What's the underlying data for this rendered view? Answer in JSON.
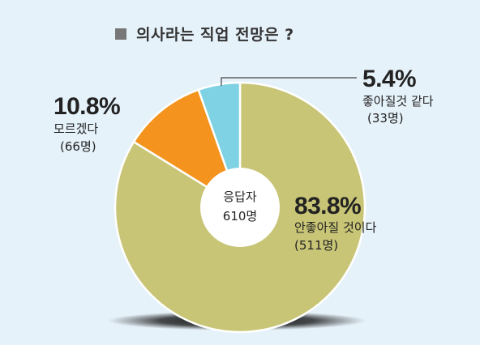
{
  "chart_data": {
    "type": "pie",
    "title": "의사라는 직업 전망은 ?",
    "center_label": "응답자",
    "center_value": "610명",
    "slices": [
      {
        "label": "안좋아질 것이다",
        "percent": "83.8%",
        "value": 83.8,
        "count": "(511명)",
        "color": "#c8c576"
      },
      {
        "label": "모르겠다",
        "percent": "10.8%",
        "value": 10.8,
        "count": "(66명)",
        "color": "#f4941f"
      },
      {
        "label": "좋아질것 같다",
        "percent": "5.4%",
        "value": 5.4,
        "count": "(33명)",
        "color": "#7ed2e3"
      }
    ]
  }
}
